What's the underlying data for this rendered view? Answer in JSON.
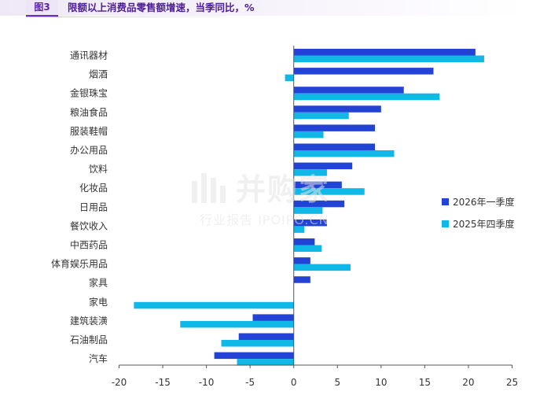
{
  "figure": {
    "badge": "图3",
    "title": "限额以上消费品零售额增速，当季同比，%"
  },
  "watermark": {
    "main": "并购家",
    "sub": "行业报告 IPOIPO.CN"
  },
  "colors": {
    "series_2026q1": "#2343d6",
    "series_2025q4": "#10b8e8",
    "axis": "#444444",
    "accent": "#6a2bc7"
  },
  "chart_data": {
    "type": "bar",
    "orientation": "horizontal",
    "categories": [
      "通讯器材",
      "烟酒",
      "金银珠宝",
      "粮油食品",
      "服装鞋帽",
      "办公用品",
      "饮料",
      "化妆品",
      "日用品",
      "餐饮收入",
      "中西药品",
      "体育娱乐用品",
      "家具",
      "家电",
      "建筑装潢",
      "石油制品",
      "汽车"
    ],
    "series": [
      {
        "name": "2026年一季度",
        "values": [
          20.8,
          16.0,
          12.6,
          10.0,
          9.3,
          9.3,
          6.7,
          5.5,
          5.8,
          3.8,
          2.4,
          1.9,
          1.9,
          null,
          -4.7,
          -6.3,
          -9.1
        ]
      },
      {
        "name": "2025年四季度",
        "values": [
          21.8,
          -1.0,
          16.7,
          6.3,
          3.4,
          11.5,
          3.8,
          8.1,
          3.3,
          1.2,
          3.2,
          6.5,
          null,
          -18.3,
          -13.0,
          -8.3,
          -6.5
        ]
      }
    ],
    "xlim": [
      -20,
      25
    ],
    "xticks": [
      "-20",
      "-15",
      "-10",
      "-5",
      "0",
      "5",
      "10",
      "15",
      "20",
      "25"
    ],
    "legend_position": "right"
  }
}
